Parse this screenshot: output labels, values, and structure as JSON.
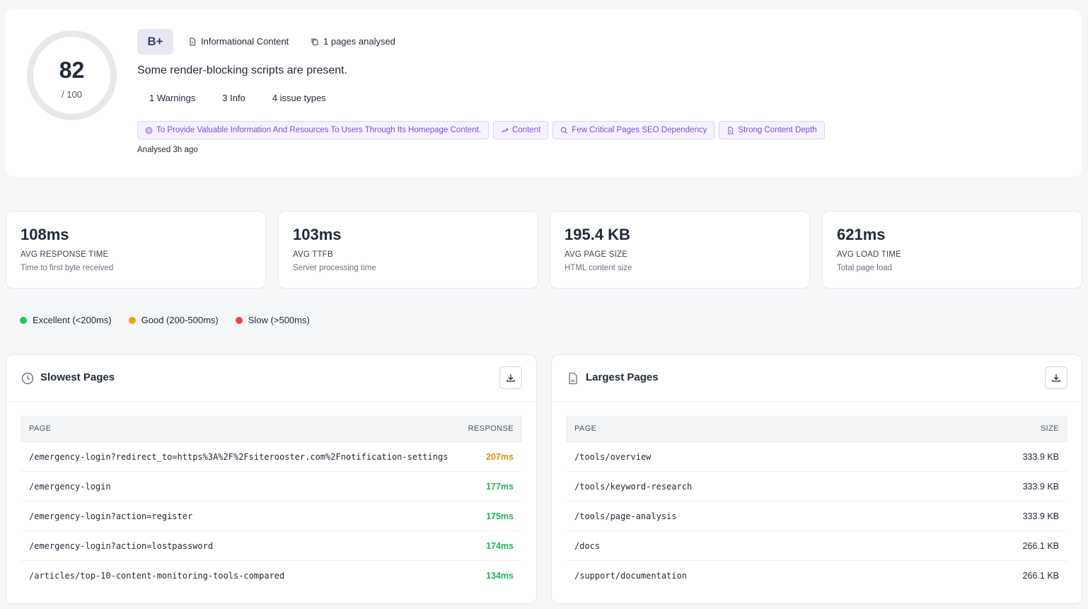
{
  "summary": {
    "score": "82",
    "score_max": "/ 100",
    "score_value": 82,
    "grade": "B+",
    "content_type": "Informational Content",
    "pages_analysed": "1 pages analysed",
    "text": "Some render-blocking scripts are present.",
    "counts": [
      "1 Warnings",
      "3 Info",
      "4 issue types"
    ],
    "tags": [
      {
        "icon": "target-icon",
        "label": "To Provide Valuable Information And Resources To Users Through Its Homepage Content."
      },
      {
        "icon": "trend-up-icon",
        "label": "Content"
      },
      {
        "icon": "search-icon",
        "label": "Few Critical Pages SEO Dependency"
      },
      {
        "icon": "document-icon",
        "label": "Strong Content Depth"
      }
    ],
    "analysed": "Analysed 3h ago"
  },
  "stats": [
    {
      "value": "108ms",
      "label": "AVG RESPONSE TIME",
      "desc": "Time to first byte received"
    },
    {
      "value": "103ms",
      "label": "AVG TTFB",
      "desc": "Server processing time"
    },
    {
      "value": "195.4 KB",
      "label": "AVG PAGE SIZE",
      "desc": "HTML content size"
    },
    {
      "value": "621ms",
      "label": "AVG LOAD TIME",
      "desc": "Total page load"
    }
  ],
  "legend": [
    {
      "label": "Excellent (<200ms)",
      "color": "#22c55e"
    },
    {
      "label": "Good (200-500ms)",
      "color": "#f59e0b"
    },
    {
      "label": "Slow (>500ms)",
      "color": "#ef4444"
    }
  ],
  "slowest": {
    "title": "Slowest Pages",
    "col_page": "PAGE",
    "col_value": "RESPONSE",
    "rows": [
      {
        "path": "/emergency-login?redirect_to=https%3A%2F%2Fsiterooster.com%2Fnotification-settings",
        "value": "207ms",
        "color": "#d4900f"
      },
      {
        "path": "/emergency-login",
        "value": "177ms",
        "color": "#22b35b"
      },
      {
        "path": "/emergency-login?action=register",
        "value": "175ms",
        "color": "#22b35b"
      },
      {
        "path": "/emergency-login?action=lostpassword",
        "value": "174ms",
        "color": "#22b35b"
      },
      {
        "path": "/articles/top-10-content-monitoring-tools-compared",
        "value": "134ms",
        "color": "#22b35b"
      }
    ]
  },
  "largest": {
    "title": "Largest Pages",
    "col_page": "PAGE",
    "col_value": "SIZE",
    "rows": [
      {
        "path": "/tools/overview",
        "value": "333.9 KB"
      },
      {
        "path": "/tools/keyword-research",
        "value": "333.9 KB"
      },
      {
        "path": "/tools/page-analysis",
        "value": "333.9 KB"
      },
      {
        "path": "/docs",
        "value": "266.1 KB"
      },
      {
        "path": "/support/documentation",
        "value": "266.1 KB"
      }
    ]
  }
}
